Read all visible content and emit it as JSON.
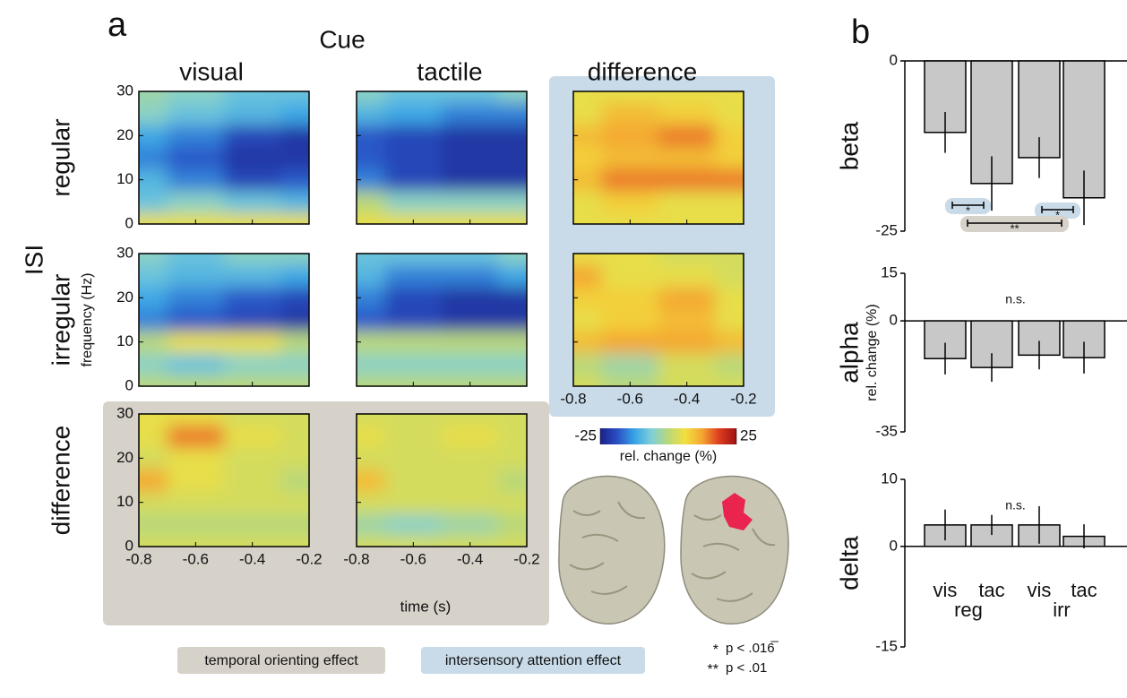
{
  "chart_data": [
    {
      "type": "heatmap",
      "panel_label": "a",
      "title": "Cue",
      "row_title": "ISI",
      "columns": [
        "visual",
        "tactile",
        "difference"
      ],
      "rows": [
        "regular",
        "irregular",
        "difference"
      ],
      "xlabel": "time (s)",
      "ylabel": "frequency (Hz)",
      "x": [
        -0.8,
        -0.6,
        -0.4,
        -0.2
      ],
      "y": [
        0,
        5,
        10,
        15,
        20,
        25,
        30
      ],
      "xlim": [
        -0.8,
        -0.2
      ],
      "xticks": [
        -0.8,
        -0.6,
        -0.4,
        -0.2
      ],
      "ylim": [
        0,
        30
      ],
      "yticks": [
        0,
        10,
        20,
        30
      ],
      "clim": [
        -25,
        25
      ],
      "colorbar_ticks": [
        -25,
        25
      ],
      "colorbar_label": "rel. change (%)",
      "colormap": [
        "#1b2187",
        "#2a4fc4",
        "#37a3e6",
        "#7fcfd8",
        "#b9d87a",
        "#f2e03e",
        "#f4a431",
        "#dd3b1f",
        "#9c1212"
      ],
      "panels": [
        [
          [
            5,
            5,
            5,
            5
          ],
          [
            -8,
            -5,
            -8,
            -10
          ],
          [
            -10,
            -15,
            -20,
            -18
          ],
          [
            -15,
            -18,
            -22,
            -22
          ],
          [
            -12,
            -15,
            -20,
            -22
          ],
          [
            -5,
            -8,
            -10,
            -12
          ],
          [
            -3,
            -5,
            -8,
            -8
          ]
        ],
        [
          [
            5,
            5,
            5,
            5
          ],
          [
            0,
            -5,
            -5,
            -5
          ],
          [
            -15,
            -20,
            -22,
            -22
          ],
          [
            -18,
            -20,
            -22,
            -22
          ],
          [
            -18,
            -20,
            -22,
            -22
          ],
          [
            -10,
            -12,
            -15,
            -15
          ],
          [
            -5,
            -8,
            -8,
            -5
          ]
        ],
        [
          [
            5,
            5,
            5,
            5
          ],
          [
            5,
            8,
            5,
            5
          ],
          [
            10,
            15,
            15,
            15
          ],
          [
            8,
            10,
            10,
            8
          ],
          [
            10,
            12,
            15,
            8
          ],
          [
            5,
            10,
            8,
            5
          ],
          [
            5,
            5,
            5,
            5
          ]
        ],
        [
          [
            0,
            0,
            0,
            0
          ],
          [
            -5,
            -8,
            -5,
            -5
          ],
          [
            0,
            5,
            5,
            0
          ],
          [
            -15,
            -18,
            -20,
            -22
          ],
          [
            -12,
            -15,
            -18,
            -20
          ],
          [
            -8,
            -10,
            -10,
            -12
          ],
          [
            -5,
            -8,
            -5,
            -5
          ]
        ],
        [
          [
            0,
            0,
            0,
            0
          ],
          [
            -5,
            -5,
            -5,
            -5
          ],
          [
            0,
            0,
            0,
            0
          ],
          [
            -18,
            -20,
            -22,
            -22
          ],
          [
            -15,
            -20,
            -22,
            -22
          ],
          [
            -10,
            -15,
            -15,
            -12
          ],
          [
            -8,
            -8,
            -8,
            -5
          ]
        ],
        [
          [
            3,
            0,
            3,
            3
          ],
          [
            0,
            -3,
            3,
            0
          ],
          [
            10,
            12,
            12,
            10
          ],
          [
            5,
            8,
            10,
            5
          ],
          [
            8,
            8,
            12,
            5
          ],
          [
            12,
            5,
            5,
            3
          ],
          [
            5,
            5,
            3,
            3
          ]
        ],
        [
          [
            3,
            3,
            3,
            3
          ],
          [
            0,
            0,
            0,
            0
          ],
          [
            3,
            3,
            3,
            3
          ],
          [
            12,
            5,
            3,
            0
          ],
          [
            3,
            5,
            3,
            3
          ],
          [
            5,
            15,
            5,
            3
          ],
          [
            5,
            5,
            3,
            3
          ]
        ],
        [
          [
            3,
            3,
            3,
            3
          ],
          [
            -3,
            -5,
            -3,
            0
          ],
          [
            3,
            3,
            3,
            3
          ],
          [
            10,
            3,
            3,
            0
          ],
          [
            3,
            3,
            3,
            3
          ],
          [
            5,
            3,
            5,
            3
          ],
          [
            3,
            3,
            3,
            3
          ]
        ]
      ],
      "legend": [
        {
          "label": "temporal orienting effect",
          "color": "#d6d1c9"
        },
        {
          "label": "intersensory attention effect",
          "color": "#c9dbe9"
        }
      ],
      "p_legend": [
        {
          "symbol": "*",
          "text": "p < .016̅"
        },
        {
          "symbol": "**",
          "text": "p < .01"
        }
      ]
    },
    {
      "type": "bar",
      "panel_label": "b",
      "categories": [
        "vis",
        "tac",
        "vis",
        "tac"
      ],
      "groups": [
        "reg",
        "irr"
      ],
      "ylabel": "rel. change (%)",
      "color": "#c8c8c8",
      "panels": [
        {
          "label": "beta",
          "ylim": [
            -25,
            0
          ],
          "yticks": [
            -25,
            0
          ],
          "values": [
            -10.5,
            -18,
            -14.2,
            -20.1
          ],
          "errors": [
            3,
            4,
            3,
            4
          ],
          "significance": [
            {
              "label": "*",
              "color": "#c9dbe9"
            },
            {
              "label": "*",
              "color": "#c9dbe9"
            },
            {
              "label": "**",
              "color": "#d6d1c9"
            }
          ]
        },
        {
          "label": "alpha",
          "ylim": [
            -35,
            15
          ],
          "yticks": [
            -35,
            0,
            15
          ],
          "values": [
            -11.9,
            -14.7,
            -10.8,
            -11.6
          ],
          "errors": [
            5,
            4.5,
            4.5,
            5
          ],
          "annotation": "n.s."
        },
        {
          "label": "delta",
          "ylim": [
            -15,
            10
          ],
          "yticks": [
            -15,
            0,
            10
          ],
          "values": [
            3.2,
            3.2,
            3.2,
            1.5
          ],
          "errors": [
            2.3,
            1.5,
            2.8,
            1.8
          ],
          "annotation": "n.s."
        }
      ]
    }
  ]
}
